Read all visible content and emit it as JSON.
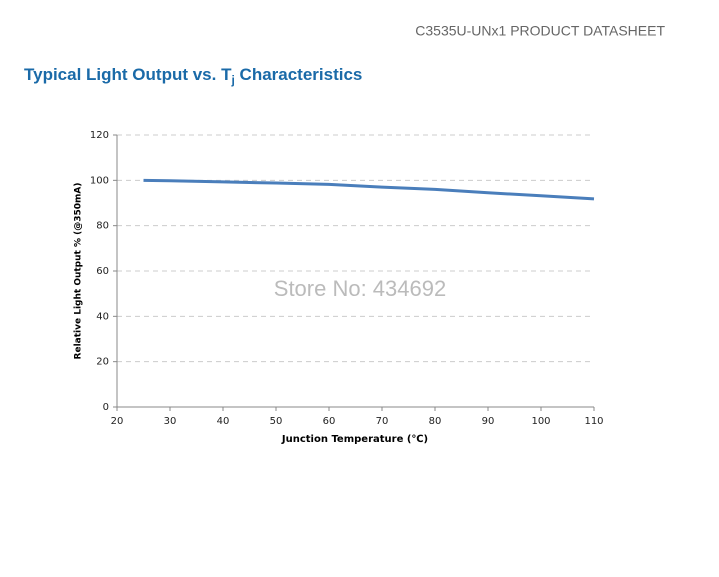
{
  "header": {
    "doc_title": "C3535U-UNx1 PRODUCT DATASHEET",
    "section_title": [
      "Typical Light Output vs. T",
      "j",
      " Characteristics"
    ]
  },
  "watermark": "Store No: 434692",
  "chart_data": {
    "type": "line",
    "x_label": "Junction Temperature (℃)",
    "y_label": "Relative Light Output % (@350mA)",
    "x": [
      25,
      30,
      40,
      50,
      60,
      70,
      80,
      90,
      100,
      110
    ],
    "series": [
      {
        "name": "Relative Light Output",
        "color": "#4a7ebb",
        "values": [
          100,
          99.8,
          99.3,
          98.8,
          98.2,
          97,
          96,
          94.5,
          93.2,
          91.8
        ]
      }
    ],
    "xlim": [
      20,
      110
    ],
    "xticks": [
      20,
      30,
      40,
      50,
      60,
      70,
      80,
      90,
      100,
      110
    ],
    "ylim": [
      0,
      120
    ],
    "yticks": [
      0,
      20,
      40,
      60,
      80,
      100,
      120
    ],
    "grid": true,
    "legend": false
  }
}
